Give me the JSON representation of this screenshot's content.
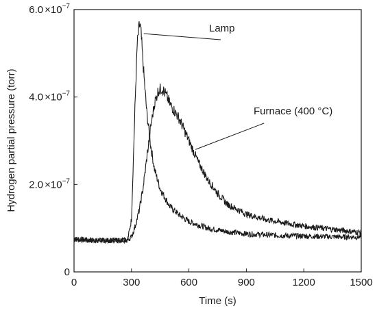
{
  "chart_data": {
    "type": "line",
    "xlabel": "Time (s)",
    "ylabel": "Hydrogen partial pressure (torr)",
    "xlim": [
      0,
      1500
    ],
    "ylim": [
      0,
      6e-07
    ],
    "x_ticks": [
      0,
      300,
      600,
      900,
      1200,
      1500
    ],
    "x_tick_labels": [
      "0",
      "300",
      "600",
      "900",
      "1200",
      "1500"
    ],
    "y_ticks": [
      {
        "value": 0,
        "mant": "0",
        "times": "",
        "base": "",
        "exp": ""
      },
      {
        "value": 2e-07,
        "mant": "2.0",
        "times": "×",
        "base": "10",
        "exp": "−7"
      },
      {
        "value": 4e-07,
        "mant": "4.0",
        "times": "×",
        "base": "10",
        "exp": "−7"
      },
      {
        "value": 6e-07,
        "mant": "6.0",
        "times": "×",
        "base": "10",
        "exp": "−7"
      }
    ],
    "grid": false,
    "legend": "none",
    "series": [
      {
        "name": "Lamp",
        "color": "#1a1a1a",
        "x": [
          0,
          100,
          200,
          280,
          300,
          310,
          320,
          330,
          340,
          345,
          350,
          360,
          370,
          380,
          400,
          420,
          450,
          500,
          550,
          600,
          700,
          800,
          900,
          1000,
          1100,
          1200,
          1300,
          1400,
          1500
        ],
        "y": [
          7.5e-08,
          7.2e-08,
          7.2e-08,
          7.3e-08,
          1.2e-07,
          2.6e-07,
          4e-07,
          5.2e-07,
          5.6e-07,
          5.65e-07,
          5.45e-07,
          4.8e-07,
          4.2e-07,
          3.65e-07,
          2.9e-07,
          2.35e-07,
          1.9e-07,
          1.5e-07,
          1.3e-07,
          1.15e-07,
          1e-07,
          9.2e-08,
          8.7e-08,
          8.5e-08,
          8.3e-08,
          8.2e-08,
          8.1e-08,
          8e-08,
          8e-08
        ]
      },
      {
        "name": "Furnace (400 °C)",
        "color": "#1a1a1a",
        "x": [
          0,
          100,
          200,
          280,
          300,
          320,
          340,
          360,
          380,
          400,
          420,
          440,
          460,
          480,
          500,
          550,
          600,
          650,
          700,
          750,
          800,
          900,
          1000,
          1100,
          1200,
          1300,
          1400,
          1500
        ],
        "y": [
          7.5e-08,
          7.2e-08,
          7.2e-08,
          7.3e-08,
          8e-08,
          1.05e-07,
          1.4e-07,
          1.9e-07,
          2.6e-07,
          3.3e-07,
          3.85e-07,
          4.15e-07,
          4.2e-07,
          4.05e-07,
          3.85e-07,
          3.5e-07,
          3e-07,
          2.5e-07,
          2.1e-07,
          1.8e-07,
          1.55e-07,
          1.32e-07,
          1.2e-07,
          1.12e-07,
          1.05e-07,
          1e-07,
          9.5e-08,
          9e-08
        ]
      }
    ],
    "annotations": [
      {
        "text": "Lamp",
        "series": 0,
        "x": 350
      },
      {
        "text": "Furnace (400 °C)",
        "series": 1,
        "x": 620
      }
    ]
  }
}
